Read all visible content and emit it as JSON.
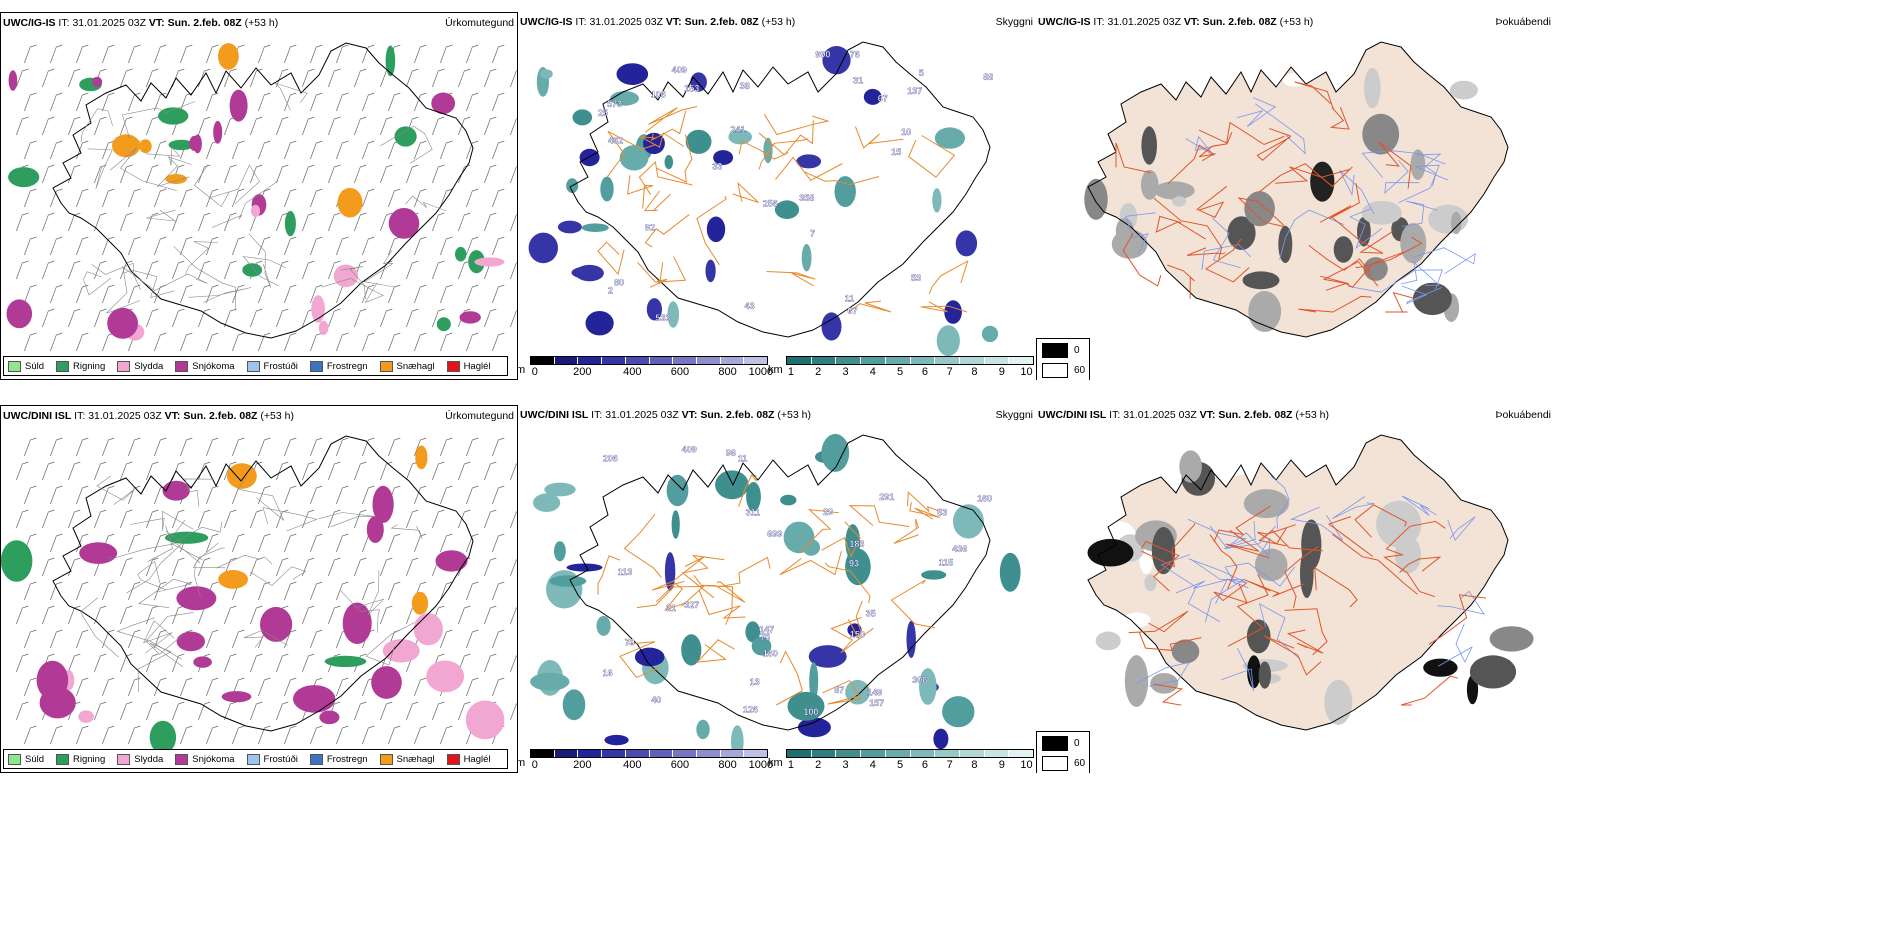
{
  "rows": [
    {
      "model": "UWC/IG-IS",
      "it_label": "IT:",
      "it_value": "31.01.2025 03Z",
      "vt_label": "VT:",
      "vt_value": "Sun. 2.feb. 08Z",
      "lead": "(+53 h)",
      "types": [
        "Úrkomutegund",
        "Skyggni",
        "Þokuábendi"
      ]
    },
    {
      "model": "UWC/DINI ISL",
      "it_label": "IT:",
      "it_value": "31.01.2025 03Z",
      "vt_label": "VT:",
      "vt_value": "Sun. 2.feb. 08Z",
      "lead": "(+53 h)",
      "types": [
        "Úrkomutegund",
        "Skyggni",
        "Þokuábendi"
      ]
    }
  ],
  "precip_legend": [
    {
      "label": "Súld",
      "color": "#8ee68e"
    },
    {
      "label": "Rigning",
      "color": "#2e9e5e"
    },
    {
      "label": "Slydda",
      "color": "#f2a6d2"
    },
    {
      "label": "Snjókoma",
      "color": "#b03a96"
    },
    {
      "label": "Frostúði",
      "color": "#9cc4ee"
    },
    {
      "label": "Frostregn",
      "color": "#3a74c2"
    },
    {
      "label": "Snæhagl",
      "color": "#f39b1c"
    },
    {
      "label": "Haglél",
      "color": "#e0141a"
    }
  ],
  "vis_m_bar": {
    "unit": "m",
    "ticks": [
      "0",
      "200",
      "400",
      "600",
      "800",
      "1000"
    ],
    "colors": [
      "#000000",
      "#1a1a7a",
      "#23239a",
      "#3535a8",
      "#4a4ab0",
      "#6060ba",
      "#7676c4",
      "#8e8ecf",
      "#a6a6da",
      "#c0c0e6"
    ]
  },
  "vis_km_bar": {
    "unit": "km",
    "ticks": [
      "1",
      "2",
      "3",
      "4",
      "5",
      "6",
      "7",
      "8",
      "9",
      "10"
    ],
    "colors": [
      "#1e7070",
      "#2e8080",
      "#3f8f8f",
      "#529d9d",
      "#67abab",
      "#7eb9b9",
      "#97c8c8",
      "#b0d6d6",
      "#c9e4e4",
      "#e2f1f1"
    ]
  },
  "fog_legend": {
    "black_label": "0",
    "white_label": "60"
  },
  "vis_labels_top": [
    "409",
    "10",
    "67",
    "25",
    "137",
    "2",
    "53",
    "256",
    "31",
    "67",
    "80",
    "76",
    "92",
    "462",
    "43",
    "358",
    "15",
    "153",
    "573",
    "241",
    "990",
    "533",
    "33",
    "11",
    "106",
    "88",
    "5",
    "38",
    "7"
  ],
  "vis_labels_bottom": [
    "113",
    "409",
    "699",
    "291",
    "160",
    "160",
    "311",
    "53",
    "126",
    "100",
    "306",
    "40",
    "147",
    "87",
    "93",
    "75",
    "150",
    "16",
    "436",
    "21",
    "115",
    "206",
    "157",
    "327",
    "11",
    "96",
    "35",
    "70",
    "29",
    "13",
    "183",
    "149"
  ]
}
